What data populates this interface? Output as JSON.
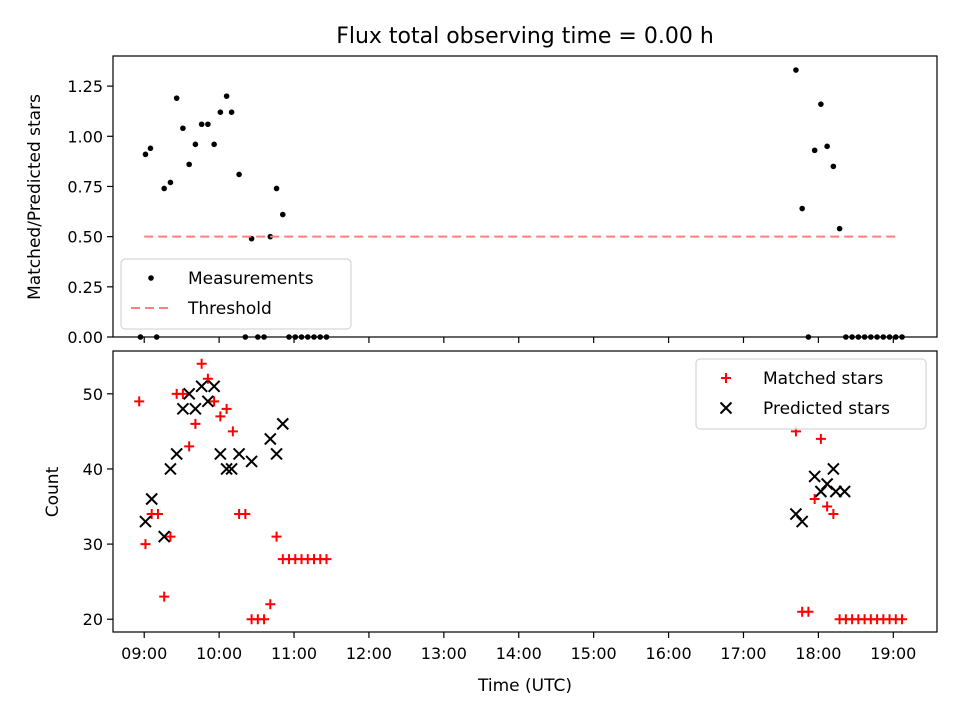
{
  "title": "Flux total observing time = 0.00 h",
  "chart_data": [
    {
      "type": "scatter",
      "ylabel": "Matched/Predicted stars",
      "ylim": [
        0,
        1.4
      ],
      "yticks": [
        "0.00",
        "0.25",
        "0.50",
        "0.75",
        "1.00",
        "1.25"
      ],
      "yticks_values": [
        0,
        0.25,
        0.5,
        0.75,
        1.0,
        1.25
      ],
      "xlim": [
        "08:35",
        "19:35"
      ],
      "legend_position": "lower-left",
      "series": [
        {
          "name": "Measurements",
          "marker": "dot",
          "color": "#000000",
          "points": [
            [
              "08:57",
              0.0
            ],
            [
              "09:01",
              0.91
            ],
            [
              "09:05",
              0.94
            ],
            [
              "09:10",
              0.0
            ],
            [
              "09:16",
              0.74
            ],
            [
              "09:21",
              0.77
            ],
            [
              "09:26",
              1.19
            ],
            [
              "09:31",
              1.04
            ],
            [
              "09:36",
              0.86
            ],
            [
              "09:41",
              0.96
            ],
            [
              "09:46",
              1.06
            ],
            [
              "09:51",
              1.06
            ],
            [
              "09:56",
              0.96
            ],
            [
              "10:01",
              1.12
            ],
            [
              "10:06",
              1.2
            ],
            [
              "10:10",
              1.12
            ],
            [
              "10:16",
              0.81
            ],
            [
              "10:21",
              0.0
            ],
            [
              "10:26",
              0.49
            ],
            [
              "10:31",
              0.0
            ],
            [
              "10:36",
              0.0
            ],
            [
              "10:41",
              0.5
            ],
            [
              "10:46",
              0.74
            ],
            [
              "10:51",
              0.61
            ],
            [
              "10:56",
              0.0
            ],
            [
              "11:01",
              0.0
            ],
            [
              "11:06",
              0.0
            ],
            [
              "11:11",
              0.0
            ],
            [
              "11:16",
              0.0
            ],
            [
              "11:21",
              0.0
            ],
            [
              "11:26",
              0.0
            ],
            [
              "17:42",
              1.33
            ],
            [
              "17:47",
              0.64
            ],
            [
              "17:52",
              0.0
            ],
            [
              "17:57",
              0.93
            ],
            [
              "18:02",
              1.16
            ],
            [
              "18:07",
              0.95
            ],
            [
              "18:12",
              0.85
            ],
            [
              "18:17",
              0.54
            ],
            [
              "18:22",
              0.0
            ],
            [
              "18:27",
              0.0
            ],
            [
              "18:32",
              0.0
            ],
            [
              "18:37",
              0.0
            ],
            [
              "18:42",
              0.0
            ],
            [
              "18:47",
              0.0
            ],
            [
              "18:52",
              0.0
            ],
            [
              "18:57",
              0.0
            ],
            [
              "19:02",
              0.0
            ],
            [
              "19:07",
              0.0
            ]
          ]
        },
        {
          "name": "Threshold",
          "marker": "dashed-line",
          "color": "#ff7f7f",
          "points": [
            [
              "09:00",
              0.5
            ],
            [
              "19:05",
              0.5
            ]
          ]
        }
      ]
    },
    {
      "type": "scatter",
      "ylabel": "Count",
      "xlabel": "Time (UTC)",
      "ylim": [
        18.3,
        55.7
      ],
      "yticks": [
        "20",
        "30",
        "40",
        "50"
      ],
      "yticks_values": [
        20,
        30,
        40,
        50
      ],
      "xlim": [
        "08:35",
        "19:35"
      ],
      "xticks": [
        "09:00",
        "10:00",
        "11:00",
        "12:00",
        "13:00",
        "14:00",
        "15:00",
        "16:00",
        "17:00",
        "18:00",
        "19:00"
      ],
      "legend_position": "upper-right",
      "series": [
        {
          "name": "Matched stars",
          "marker": "plus",
          "color": "#ff0000",
          "points": [
            [
              "08:56",
              49
            ],
            [
              "09:01",
              30
            ],
            [
              "09:06",
              34
            ],
            [
              "09:11",
              34
            ],
            [
              "09:16",
              23
            ],
            [
              "09:21",
              31
            ],
            [
              "09:26",
              50
            ],
            [
              "09:31",
              50
            ],
            [
              "09:36",
              43
            ],
            [
              "09:41",
              46
            ],
            [
              "09:46",
              54
            ],
            [
              "09:51",
              52
            ],
            [
              "09:56",
              49
            ],
            [
              "10:01",
              47
            ],
            [
              "10:06",
              48
            ],
            [
              "10:11",
              45
            ],
            [
              "10:16",
              34
            ],
            [
              "10:21",
              34
            ],
            [
              "10:26",
              20
            ],
            [
              "10:31",
              20
            ],
            [
              "10:36",
              20
            ],
            [
              "10:41",
              22
            ],
            [
              "10:46",
              31
            ],
            [
              "10:51",
              28
            ],
            [
              "10:56",
              28
            ],
            [
              "11:01",
              28
            ],
            [
              "11:06",
              28
            ],
            [
              "11:11",
              28
            ],
            [
              "11:16",
              28
            ],
            [
              "11:21",
              28
            ],
            [
              "11:26",
              28
            ],
            [
              "17:42",
              45
            ],
            [
              "17:47",
              21
            ],
            [
              "17:52",
              21
            ],
            [
              "17:57",
              36
            ],
            [
              "18:02",
              44
            ],
            [
              "18:07",
              35
            ],
            [
              "18:12",
              34
            ],
            [
              "18:17",
              20
            ],
            [
              "18:22",
              20
            ],
            [
              "18:27",
              20
            ],
            [
              "18:32",
              20
            ],
            [
              "18:37",
              20
            ],
            [
              "18:42",
              20
            ],
            [
              "18:47",
              20
            ],
            [
              "18:52",
              20
            ],
            [
              "18:57",
              20
            ],
            [
              "19:02",
              20
            ],
            [
              "19:07",
              20
            ]
          ]
        },
        {
          "name": "Predicted stars",
          "marker": "x",
          "color": "#000000",
          "points": [
            [
              "09:01",
              33
            ],
            [
              "09:06",
              36
            ],
            [
              "09:16",
              31
            ],
            [
              "09:21",
              40
            ],
            [
              "09:26",
              42
            ],
            [
              "09:31",
              48
            ],
            [
              "09:36",
              50
            ],
            [
              "09:41",
              48
            ],
            [
              "09:46",
              51
            ],
            [
              "09:51",
              49
            ],
            [
              "09:56",
              51
            ],
            [
              "10:01",
              42
            ],
            [
              "10:06",
              40
            ],
            [
              "10:10",
              40
            ],
            [
              "10:16",
              42
            ],
            [
              "10:26",
              41
            ],
            [
              "10:41",
              44
            ],
            [
              "10:46",
              42
            ],
            [
              "10:51",
              46
            ],
            [
              "17:42",
              34
            ],
            [
              "17:47",
              33
            ],
            [
              "17:57",
              39
            ],
            [
              "18:02",
              37
            ],
            [
              "18:07",
              38
            ],
            [
              "18:12",
              40
            ],
            [
              "18:14",
              37
            ],
            [
              "18:21",
              37
            ]
          ]
        }
      ]
    }
  ]
}
